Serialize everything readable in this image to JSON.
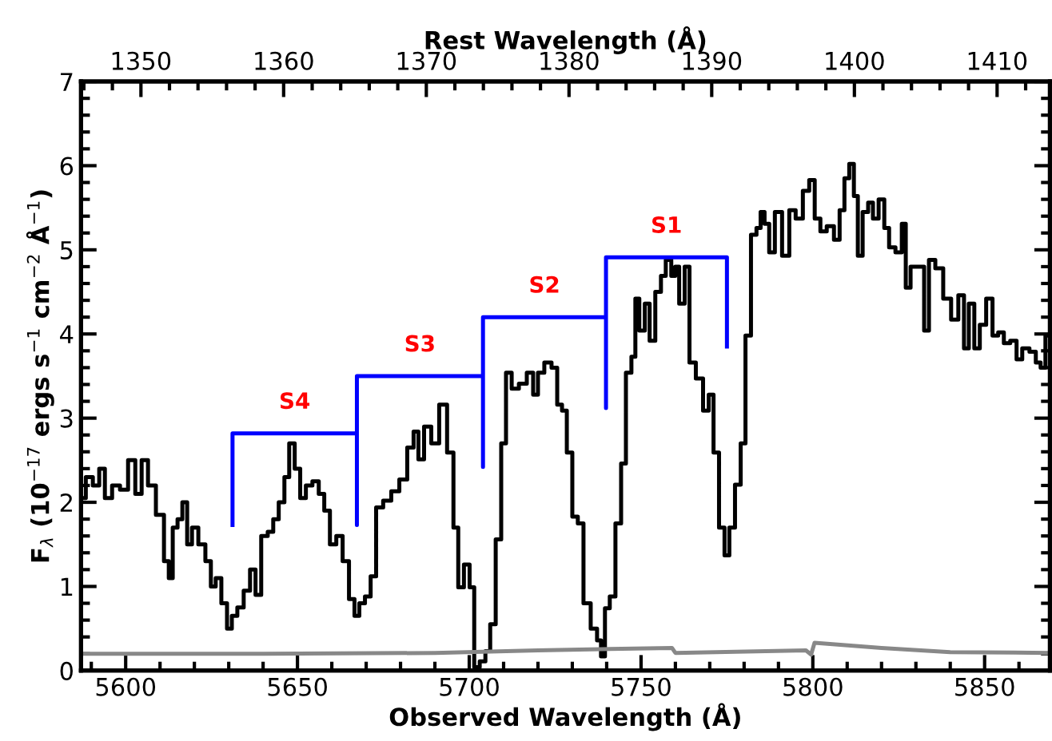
{
  "chart_data": {
    "type": "step",
    "xlabel": "Observed Wavelength (Å)",
    "x2label": "Rest Wavelength (Å)",
    "ylabel": "F$_{λ}$ (10$^{−17}$ ergs s$^{−1}$ cm$^{−2}$ Å$^{−1}$)",
    "xlim": [
      5587,
      5869
    ],
    "xticks": [
      5600,
      5650,
      5700,
      5750,
      5800,
      5850
    ],
    "x2lim": [
      1345.8,
      1413.7
    ],
    "x2ticks": [
      1350,
      1360,
      1370,
      1380,
      1390,
      1400,
      1410
    ],
    "ylim": [
      0,
      7
    ],
    "yticks": [
      0,
      1,
      2,
      3,
      4,
      5,
      6,
      7
    ],
    "grid": false,
    "legend": false,
    "series": [
      {
        "color": "#000000",
        "x": [
          5587.5,
          5589.3,
          5591.6,
          5593.0,
          5594.9,
          5597.2,
          5599.5,
          5601.9,
          5603.7,
          5605.6,
          5607.4,
          5610.2,
          5612.1,
          5613.0,
          5614.4,
          5615.8,
          5617.2,
          5618.6,
          5620.0,
          5622.3,
          5624.1,
          5625.5,
          5626.9,
          5628.8,
          5630.2,
          5631.6,
          5633.4,
          5635.3,
          5637.1,
          5638.5,
          5640.4,
          5642.3,
          5643.6,
          5645.5,
          5646.9,
          5648.3,
          5650.1,
          5651.5,
          5653.4,
          5655.3,
          5657.1,
          5658.5,
          5660.4,
          5662.2,
          5664.1,
          5665.9,
          5667.3,
          5668.7,
          5670.6,
          5672.0,
          5673.8,
          5676.1,
          5678.5,
          5680.8,
          5683.1,
          5684.5,
          5685.9,
          5687.8,
          5690.1,
          5692.4,
          5694.7,
          5696.1,
          5697.5,
          5699.4,
          5700.8,
          5702.1,
          5704.0,
          5705.4,
          5706.8,
          5708.6,
          5710.0,
          5711.4,
          5713.3,
          5715.6,
          5717.9,
          5719.3,
          5720.7,
          5723.0,
          5724.9,
          5726.3,
          5727.7,
          5729.1,
          5730.9,
          5732.3,
          5734.2,
          5736.5,
          5737.9,
          5738.8,
          5740.2,
          5741.6,
          5743.5,
          5744.9,
          5746.3,
          5748.1,
          5748.6,
          5750.4,
          5751.8,
          5753.2,
          5755.1,
          5756.5,
          5757.9,
          5759.7,
          5760.2,
          5762.0,
          5763.4,
          5764.8,
          5767.1,
          5769.0,
          5770.4,
          5771.8,
          5773.6,
          5775.0,
          5776.4,
          5778.3,
          5779.7,
          5781.1,
          5782.9,
          5784.3,
          5785.3,
          5786.6,
          5788.0,
          5789.9,
          5792.2,
          5794.1,
          5795.9,
          5798.3,
          5799.6,
          5801.5,
          5802.9,
          5805.2,
          5807.1,
          5808.5,
          5809.9,
          5811.3,
          5812.6,
          5813.6,
          5815.4,
          5816.8,
          5818.2,
          5820.1,
          5821.5,
          5822.9,
          5825.2,
          5826.6,
          5827.5,
          5829.4,
          5831.7,
          5833.1,
          5834.5,
          5836.8,
          5839.1,
          5841.4,
          5843.3,
          5844.7,
          5846.1,
          5847.9,
          5849.3,
          5851.6,
          5853.0,
          5854.9,
          5856.3,
          5858.6,
          5860.0,
          5861.9,
          5864.2,
          5865.6,
          5867.0,
          5868.4
        ],
        "values": [
          2.05,
          2.3,
          2.2,
          2.4,
          2.05,
          2.2,
          2.15,
          2.5,
          2.1,
          2.5,
          2.2,
          1.85,
          1.3,
          1.1,
          1.7,
          1.8,
          2.0,
          1.5,
          1.7,
          1.5,
          1.3,
          1.0,
          1.1,
          0.8,
          0.5,
          0.65,
          0.75,
          0.95,
          1.2,
          0.9,
          1.6,
          1.65,
          1.8,
          2.0,
          2.3,
          2.7,
          2.4,
          2.05,
          2.2,
          2.25,
          2.1,
          1.9,
          1.5,
          1.6,
          1.3,
          0.85,
          0.65,
          0.8,
          0.88,
          1.12,
          1.94,
          2.02,
          2.13,
          2.27,
          2.65,
          2.84,
          2.51,
          2.9,
          2.7,
          3.16,
          2.59,
          1.7,
          0.99,
          1.26,
          0.99,
          0.04,
          0.11,
          0.23,
          0.55,
          1.56,
          2.7,
          3.54,
          3.35,
          3.41,
          3.54,
          3.28,
          3.54,
          3.66,
          3.6,
          3.16,
          3.09,
          2.59,
          1.83,
          1.75,
          0.8,
          0.5,
          0.36,
          0.17,
          0.74,
          0.88,
          1.75,
          2.46,
          3.54,
          3.73,
          4.42,
          4.04,
          4.36,
          3.92,
          4.5,
          4.69,
          4.88,
          4.69,
          4.8,
          4.36,
          4.8,
          3.66,
          3.47,
          3.09,
          3.28,
          2.59,
          1.7,
          1.37,
          1.7,
          2.21,
          2.7,
          3.98,
          5.18,
          5.26,
          5.45,
          5.31,
          4.97,
          5.45,
          4.93,
          5.47,
          5.37,
          5.7,
          5.83,
          5.37,
          5.22,
          5.28,
          5.12,
          5.47,
          5.85,
          6.02,
          5.64,
          4.93,
          5.45,
          5.56,
          5.37,
          5.6,
          5.26,
          5.03,
          4.97,
          5.31,
          4.55,
          4.8,
          4.8,
          4.04,
          4.88,
          4.78,
          4.42,
          4.17,
          4.46,
          3.83,
          4.36,
          3.83,
          4.11,
          4.42,
          3.98,
          4.02,
          3.89,
          3.92,
          3.7,
          3.83,
          3.79,
          3.66,
          3.6,
          3.98
        ]
      },
      {
        "type": "line",
        "color": "#888888",
        "x": [
          5587,
          5640,
          5690,
          5720,
          5759,
          5760,
          5798,
          5799.5,
          5800.5,
          5820,
          5840,
          5869
        ],
        "values": [
          0.2,
          0.2,
          0.21,
          0.24,
          0.27,
          0.21,
          0.24,
          0.19,
          0.33,
          0.27,
          0.22,
          0.21
        ]
      },
      {
        "type": "line",
        "color": "#0000ff",
        "x": [
          5631.1,
          5631.1,
          5667.3,
          5667.3,
          5667.3,
          5704.0,
          5704.0,
          5704.0,
          5739.8,
          5739.8,
          5739.8,
          5775.0,
          5775.0
        ],
        "values": [
          1.73,
          2.82,
          2.82,
          1.73,
          3.5,
          3.5,
          2.42,
          4.2,
          4.2,
          3.12,
          4.91,
          4.91,
          3.85
        ]
      }
    ],
    "annotations": [
      "S4",
      "S3",
      "S2",
      "S1"
    ]
  }
}
